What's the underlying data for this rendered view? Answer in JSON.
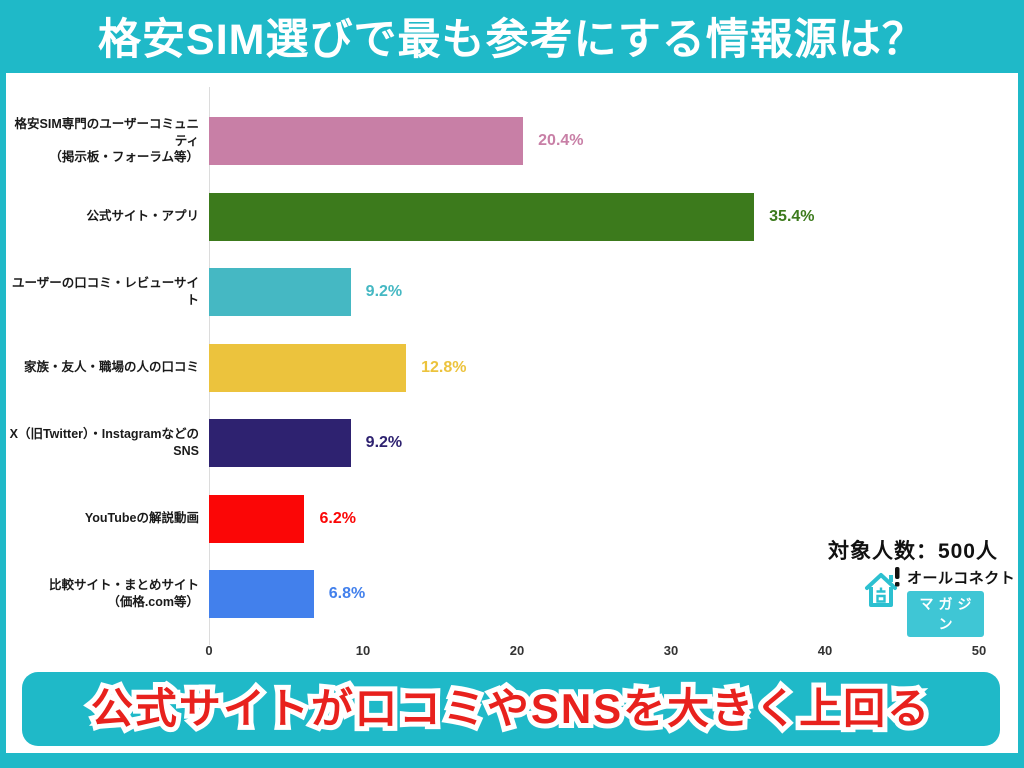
{
  "page": {
    "bg_color": "#1fb9c8"
  },
  "header": {
    "title": "格安SIM選びで最も参考にする情報源は？"
  },
  "chart_data": {
    "type": "bar",
    "orientation": "horizontal",
    "title": "格安SIM選びで最も参考にする情報源は？",
    "categories": [
      "格安SIM専門のユーザーコミュニティ\n（掲示板・フォーラム等）",
      "公式サイト・アプリ",
      "ユーザーの口コミ・レビューサイト",
      "家族・友人・職場の人の口コミ",
      "X（旧Twitter）・InstagramなどのSNS",
      "YouTubeの解説動画",
      "比較サイト・まとめサイト\n（価格.com等）"
    ],
    "values": [
      20.4,
      35.4,
      9.2,
      12.8,
      9.2,
      6.2,
      6.8
    ],
    "value_labels": [
      "20.4%",
      "35.4%",
      "9.2%",
      "12.8%",
      "9.2%",
      "6.2%",
      "6.8%"
    ],
    "bar_colors": [
      "#c87fa6",
      "#3c7a1c",
      "#45b8c3",
      "#ecc33d",
      "#2e2270",
      "#fb0606",
      "#4280ec"
    ],
    "x_ticks": [
      "0",
      "10",
      "20",
      "30",
      "40",
      "50"
    ],
    "xlim": [
      0,
      50
    ],
    "unit": "%",
    "grid": false,
    "legend": false
  },
  "annotation": {
    "sample_size": "対象人数：500人"
  },
  "logo": {
    "icon": "house-icon",
    "name": "オールコネクト",
    "badge": "マガジン",
    "accent_color": "#3fc6d5"
  },
  "footer": {
    "headline": "公式サイトが口コミやSNSを大きく上回る",
    "text_color": "#e8211d",
    "banner_color": "#1fb9c8"
  }
}
